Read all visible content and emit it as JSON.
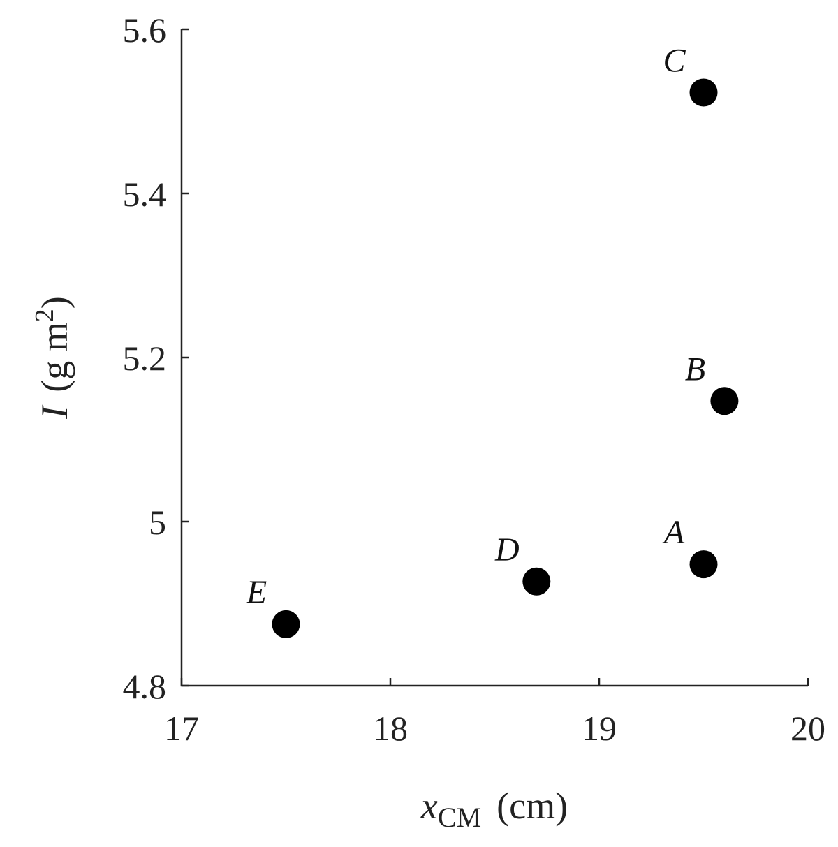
{
  "chart_data": {
    "type": "scatter",
    "title": "",
    "xlabel": {
      "italic": "x",
      "subscript": "CM",
      "units": "(cm)"
    },
    "ylabel": {
      "italic": "I",
      "units_prefix": "(g m",
      "superscript": "2",
      "units_suffix": ")"
    },
    "xlim": [
      17,
      20
    ],
    "ylim": [
      4.8,
      5.6
    ],
    "xticks": [
      17,
      18,
      19,
      20
    ],
    "xtick_labels": [
      "17",
      "18",
      "19",
      "20"
    ],
    "yticks": [
      4.8,
      5.0,
      5.2,
      5.4,
      5.6
    ],
    "ytick_labels": [
      "4.8",
      "5",
      "5.2",
      "5.4",
      "5.6"
    ],
    "grid": false,
    "marker_color": "#000000",
    "points": [
      {
        "label": "A",
        "x": 19.5,
        "y": 4.948
      },
      {
        "label": "B",
        "x": 19.6,
        "y": 5.147
      },
      {
        "label": "C",
        "x": 19.5,
        "y": 5.523
      },
      {
        "label": "D",
        "x": 18.7,
        "y": 4.927
      },
      {
        "label": "E",
        "x": 17.5,
        "y": 4.875
      }
    ]
  }
}
